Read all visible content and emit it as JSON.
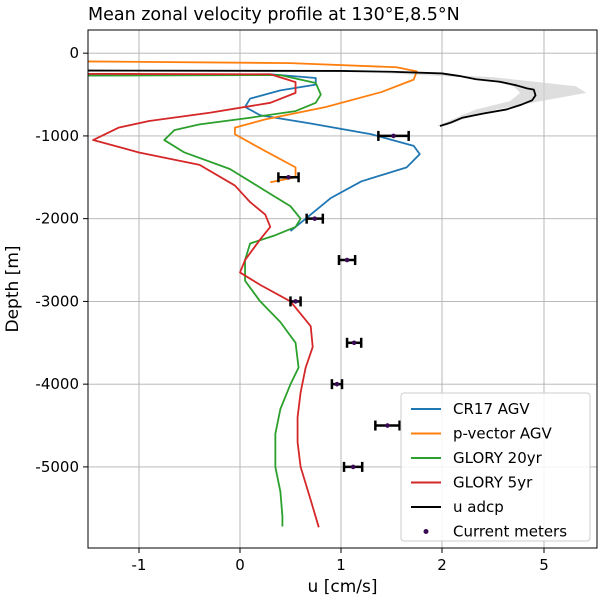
{
  "chart_data": {
    "type": "line",
    "title": "Mean zonal velocity profile at 130°E,8.5°N",
    "xlabel": "u [cm/s]",
    "ylabel": "Depth [m]",
    "xlim": [
      -1.5,
      5.5
    ],
    "ylim": [
      -5980,
      280
    ],
    "grid": true,
    "legend_position": "lower-right",
    "x_ticks": [
      {
        "value": -1,
        "label": "-1"
      },
      {
        "value": 0,
        "label": "0"
      },
      {
        "value": 1,
        "label": "1"
      },
      {
        "value": 2,
        "label": "2"
      },
      {
        "value": 5,
        "label": "5"
      }
    ],
    "y_ticks": [
      {
        "value": 0,
        "label": "0"
      },
      {
        "value": -1000,
        "label": "-1000"
      },
      {
        "value": -2000,
        "label": "-2000"
      },
      {
        "value": -3000,
        "label": "-3000"
      },
      {
        "value": -4000,
        "label": "-4000"
      },
      {
        "value": -5000,
        "label": "-5000"
      }
    ],
    "series": [
      {
        "name": "CR17 AGV",
        "color": "#1f77b4",
        "u": [
          -1.5,
          0.3,
          0.75,
          0.75,
          0.4,
          0.1,
          0.05,
          0.2,
          0.7,
          1.3,
          1.72,
          1.78,
          1.65,
          1.2,
          0.9,
          0.7,
          0.5
        ],
        "depth": [
          -270,
          -255,
          -300,
          -380,
          -450,
          -550,
          -650,
          -750,
          -850,
          -980,
          -1120,
          -1220,
          -1380,
          -1550,
          -1750,
          -1950,
          -2150
        ]
      },
      {
        "name": "p-vector AGV",
        "color": "#ff7f0e",
        "u": [
          -1.5,
          0.5,
          1.55,
          1.75,
          1.72,
          1.4,
          0.85,
          0.25,
          -0.05,
          -0.05,
          0.2,
          0.55,
          0.55,
          0.3
        ],
        "depth": [
          -100,
          -120,
          -170,
          -220,
          -320,
          -470,
          -650,
          -800,
          -900,
          -980,
          -1150,
          -1380,
          -1500,
          -1560
        ]
      },
      {
        "name": "GLORY 20yr",
        "color": "#2ca02c",
        "u": [
          -1.5,
          0.4,
          0.75,
          0.8,
          0.75,
          0.55,
          0.1,
          -0.4,
          -0.65,
          -0.75,
          -0.55,
          -0.1,
          0.3,
          0.5,
          0.6,
          0.55,
          0.35,
          0.1,
          0.05,
          0.05,
          0.2,
          0.4,
          0.55,
          0.58,
          0.5,
          0.4,
          0.35,
          0.35,
          0.4,
          0.42,
          0.42
        ],
        "depth": [
          -270,
          -265,
          -360,
          -500,
          -600,
          -700,
          -780,
          -860,
          -930,
          -1050,
          -1200,
          -1400,
          -1700,
          -1850,
          -2000,
          -2100,
          -2200,
          -2300,
          -2500,
          -2750,
          -3000,
          -3250,
          -3500,
          -3800,
          -4000,
          -4300,
          -4600,
          -5000,
          -5300,
          -5600,
          -5720
        ]
      },
      {
        "name": "GLORY 5yr",
        "color": "#d62728",
        "u": [
          -1.5,
          0.3,
          0.55,
          0.55,
          0.3,
          -0.3,
          -0.9,
          -1.2,
          -1.45,
          -1.0,
          -0.4,
          -0.05,
          0.1,
          0.25,
          0.3,
          0.2,
          0.05,
          0.0,
          0.2,
          0.5,
          0.7,
          0.72,
          0.65,
          0.6,
          0.57,
          0.57,
          0.6,
          0.7,
          0.78
        ],
        "depth": [
          -250,
          -255,
          -350,
          -480,
          -600,
          -720,
          -820,
          -900,
          -1050,
          -1200,
          -1350,
          -1600,
          -1800,
          -1950,
          -2100,
          -2250,
          -2500,
          -2650,
          -2800,
          -3000,
          -3300,
          -3550,
          -3800,
          -4100,
          -4400,
          -4700,
          -5000,
          -5400,
          -5730
        ]
      },
      {
        "name": "u adcp",
        "color": "#000000",
        "u": [
          -1.5,
          1.0,
          1.5,
          2.0,
          2.5,
          3.0,
          3.7,
          4.2,
          4.5,
          4.7,
          4.75,
          4.65,
          4.35,
          3.9,
          3.2,
          2.6,
          2.25,
          1.98
        ],
        "depth": [
          -210,
          -215,
          -225,
          -245,
          -275,
          -315,
          -345,
          -390,
          -425,
          -440,
          -510,
          -570,
          -620,
          -680,
          -730,
          -780,
          -840,
          -880
        ],
        "band": {
          "upper": [
            1.6,
            3.5,
            4.6,
            5.3,
            5.4,
            4.9,
            3.6,
            2.6,
            2.1
          ],
          "lower": [
            1.4,
            2.6,
            3.5,
            4.1,
            4.3,
            4.0,
            3.0,
            2.3,
            1.95
          ],
          "depth": [
            -240,
            -290,
            -340,
            -400,
            -480,
            -580,
            -680,
            -800,
            -880
          ]
        }
      }
    ],
    "current_meters": {
      "name": "Current meters",
      "color": "#3b0a55",
      "points": [
        {
          "u": 1.52,
          "depth": -1000,
          "err": 0.15
        },
        {
          "u": 0.48,
          "depth": -1500,
          "err": 0.1
        },
        {
          "u": 0.74,
          "depth": -2000,
          "err": 0.08
        },
        {
          "u": 1.06,
          "depth": -2500,
          "err": 0.08
        },
        {
          "u": 0.55,
          "depth": -3000,
          "err": 0.05
        },
        {
          "u": 1.13,
          "depth": -3500,
          "err": 0.07
        },
        {
          "u": 0.96,
          "depth": -4000,
          "err": 0.05
        },
        {
          "u": 1.46,
          "depth": -4500,
          "err": 0.12
        },
        {
          "u": 1.12,
          "depth": -5000,
          "err": 0.09
        }
      ]
    },
    "legend": [
      "CR17 AGV",
      "p-vector AGV",
      "GLORY 20yr",
      "GLORY 5yr",
      "u adcp",
      "Current meters"
    ]
  }
}
